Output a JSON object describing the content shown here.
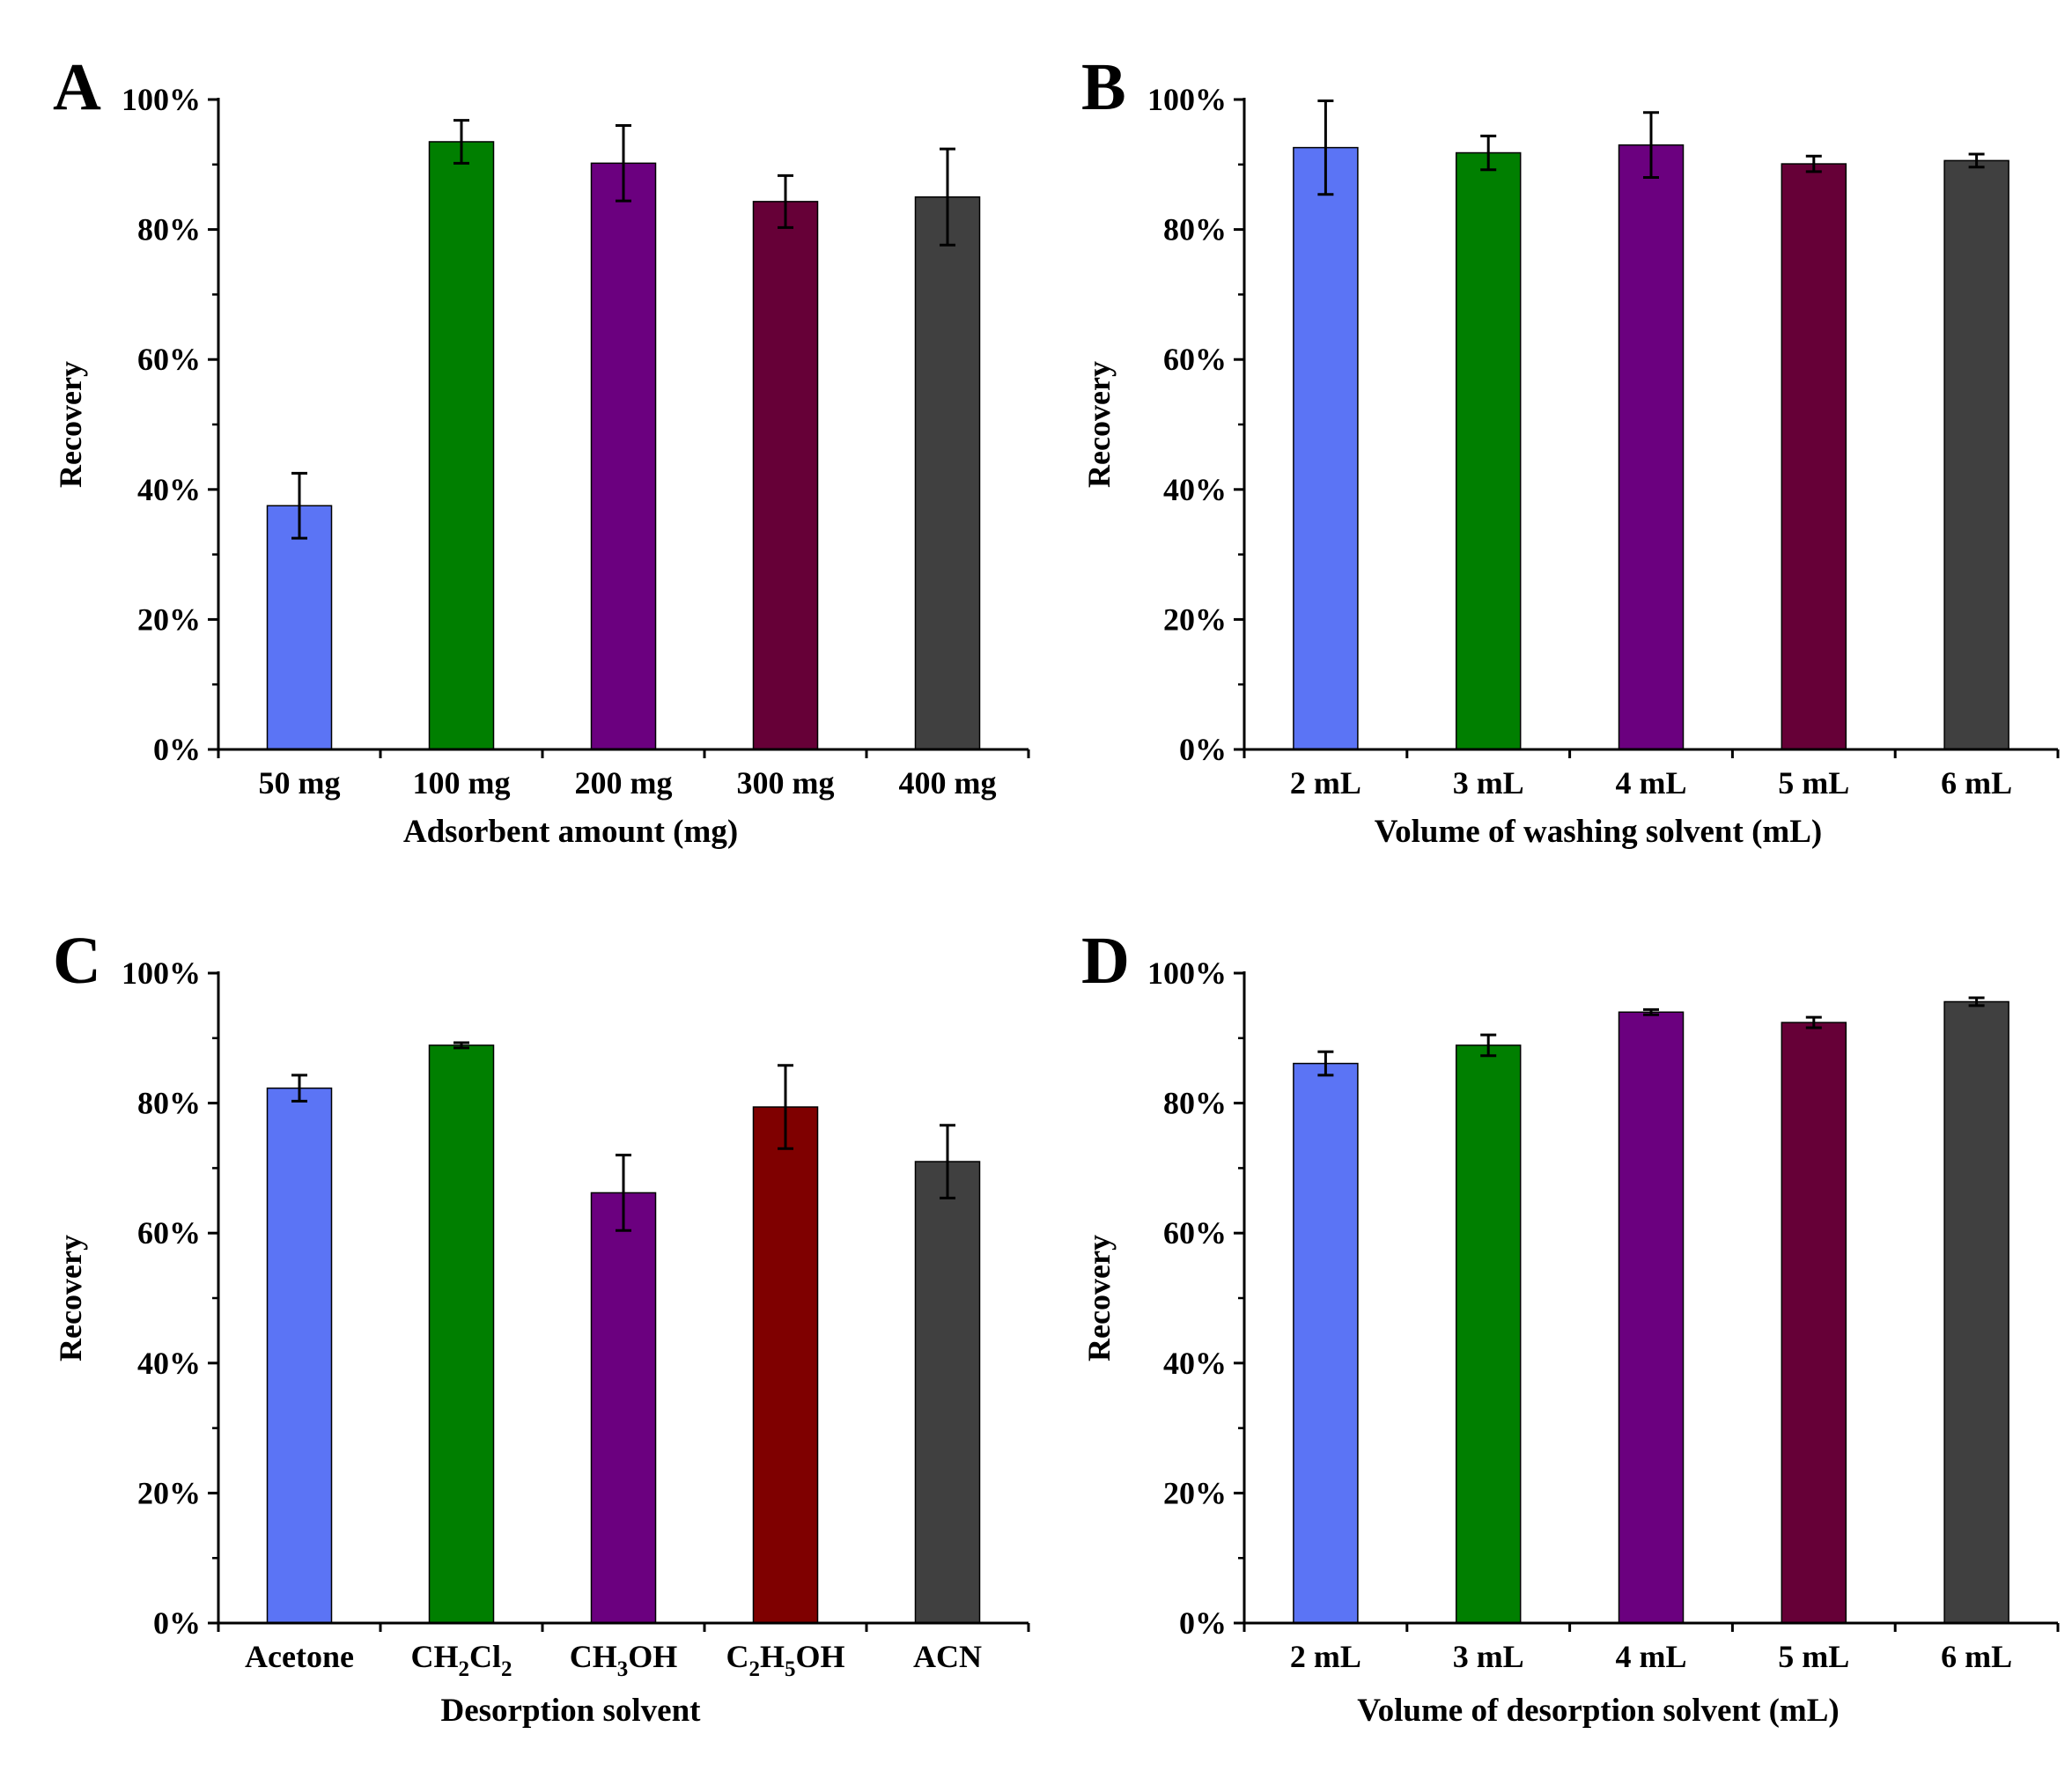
{
  "chart_data": [
    {
      "panel": "A",
      "type": "bar",
      "categories": [
        "50 mg",
        "100 mg",
        "200 mg",
        "300 mg",
        "400 mg"
      ],
      "values": [
        37.5,
        93.5,
        90.2,
        84.3,
        85.0
      ],
      "errors": [
        5.0,
        3.3,
        5.8,
        4.0,
        7.4
      ],
      "colors": [
        "#5b74f5",
        "#007f00",
        "#6b007f",
        "#660037",
        "#404040"
      ],
      "xlabel": "Adsorbent amount (mg)",
      "ylabel": "Recovery",
      "ylim": [
        0,
        100
      ],
      "yticks": [
        "0%",
        "20%",
        "40%",
        "60%",
        "80%",
        "100%"
      ]
    },
    {
      "panel": "B",
      "type": "bar",
      "categories": [
        "2 mL",
        "3 mL",
        "4 mL",
        "5 mL",
        "6 mL"
      ],
      "values": [
        92.6,
        91.8,
        93.0,
        90.1,
        90.6
      ],
      "errors": [
        7.2,
        2.6,
        5.0,
        1.2,
        1.0
      ],
      "colors": [
        "#5b74f5",
        "#007f00",
        "#6b007f",
        "#660037",
        "#404040"
      ],
      "xlabel": "Volume of washing solvent (mL)",
      "ylabel": "Recovery",
      "ylim": [
        0,
        100
      ],
      "yticks": [
        "0%",
        "20%",
        "40%",
        "60%",
        "80%",
        "100%"
      ]
    },
    {
      "panel": "C",
      "type": "bar",
      "categories": [
        "Acetone",
        "CH2Cl2",
        "CH3OH",
        "C2H5OH",
        "ACN"
      ],
      "category_parts": [
        [
          [
            "Acetone",
            false
          ]
        ],
        [
          [
            "CH",
            false
          ],
          [
            "2",
            true
          ],
          [
            "Cl",
            false
          ],
          [
            "2",
            true
          ]
        ],
        [
          [
            "CH",
            false
          ],
          [
            "3",
            true
          ],
          [
            "OH",
            false
          ]
        ],
        [
          [
            "C",
            false
          ],
          [
            "2",
            true
          ],
          [
            "H",
            false
          ],
          [
            "5",
            true
          ],
          [
            "OH",
            false
          ]
        ],
        [
          [
            "ACN",
            false
          ]
        ]
      ],
      "values": [
        82.3,
        88.9,
        66.2,
        79.4,
        71.0
      ],
      "errors": [
        2.0,
        0.4,
        5.8,
        6.4,
        5.6
      ],
      "colors": [
        "#5b74f5",
        "#007f00",
        "#6b007f",
        "#7f0000",
        "#404040"
      ],
      "xlabel": "Desorption solvent",
      "ylabel": "Recovery",
      "ylim": [
        0,
        100
      ],
      "yticks": [
        "0%",
        "20%",
        "40%",
        "60%",
        "80%",
        "100%"
      ]
    },
    {
      "panel": "D",
      "type": "bar",
      "categories": [
        "2 mL",
        "3 mL",
        "4 mL",
        "5 mL",
        "6 mL"
      ],
      "values": [
        86.1,
        88.9,
        94.0,
        92.4,
        95.6
      ],
      "errors": [
        1.8,
        1.6,
        0.4,
        0.8,
        0.6
      ],
      "colors": [
        "#5b74f5",
        "#007f00",
        "#6b007f",
        "#660037",
        "#404040"
      ],
      "xlabel": "Volume of desorption solvent (mL)",
      "ylabel": "Recovery",
      "ylim": [
        0,
        100
      ],
      "yticks": [
        "0%",
        "20%",
        "40%",
        "60%",
        "80%",
        "100%"
      ]
    }
  ]
}
